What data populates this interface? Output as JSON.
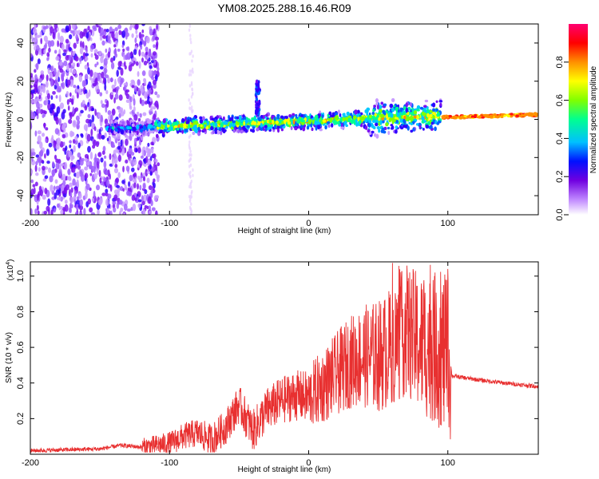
{
  "title": "YM08.2025.288.16.46.R09",
  "chart_data": [
    {
      "type": "heatmap",
      "xlabel": "Height of straight line (km)",
      "ylabel": "Frequency (Hz)",
      "xlim": [
        -200,
        165
      ],
      "ylim": [
        -50,
        50
      ],
      "xticks": [
        -200,
        -100,
        0,
        100
      ],
      "yticks": [
        -40,
        -20,
        0,
        20,
        40
      ],
      "colorbar": {
        "label": "Normalized spectral amplitude",
        "range": [
          0,
          1
        ],
        "ticks": [
          "0.0",
          "0.2",
          "0.4",
          "0.6",
          "0.8"
        ],
        "colors": [
          "#ffffff",
          "#b070ff",
          "#7a00e6",
          "#0000ff",
          "#00c8ff",
          "#00ff80",
          "#80ff00",
          "#ffff00",
          "#ff8000",
          "#ff0000",
          "#ff0080"
        ]
      },
      "features": [
        {
          "name": "broadband noise",
          "x_range": [
            -200,
            -110
          ],
          "freq_range": [
            -50,
            50
          ]
        },
        {
          "name": "meteor head echo trace",
          "x_range": [
            -145,
            95
          ],
          "freq_center": 0,
          "freq_halfwidth": 6
        },
        {
          "name": "transient burst",
          "x": -37,
          "freq_range": [
            5,
            20
          ]
        },
        {
          "name": "narrowband trail echo",
          "x_range": [
            95,
            165
          ],
          "freq_center": 1.5
        }
      ]
    },
    {
      "type": "line",
      "xlabel": "Height of straight line (km)",
      "ylabel": "SNR (10 * v/v)",
      "y_scale_label": "(x10",
      "y_scale_exp": "4",
      "xlim": [
        -200,
        165
      ],
      "ylim": [
        0,
        1.08
      ],
      "xticks": [
        -200,
        -100,
        0,
        100
      ],
      "yticks": [
        "0.2",
        "0.4",
        "0.6",
        "0.8",
        "1.0"
      ],
      "color": "#e83030",
      "x": [
        -200,
        -150,
        -135,
        -120,
        -100,
        -90,
        -80,
        -70,
        -60,
        -50,
        -40,
        -30,
        -20,
        -10,
        0,
        10,
        20,
        30,
        40,
        50,
        60,
        70,
        80,
        90,
        100,
        102,
        103,
        120,
        140,
        165
      ],
      "y": [
        0.02,
        0.03,
        0.05,
        0.04,
        0.06,
        0.1,
        0.12,
        0.08,
        0.15,
        0.28,
        0.13,
        0.25,
        0.3,
        0.33,
        0.32,
        0.38,
        0.45,
        0.52,
        0.55,
        0.55,
        0.6,
        0.7,
        0.62,
        0.6,
        0.55,
        0.5,
        0.44,
        0.42,
        0.4,
        0.38
      ]
    }
  ]
}
